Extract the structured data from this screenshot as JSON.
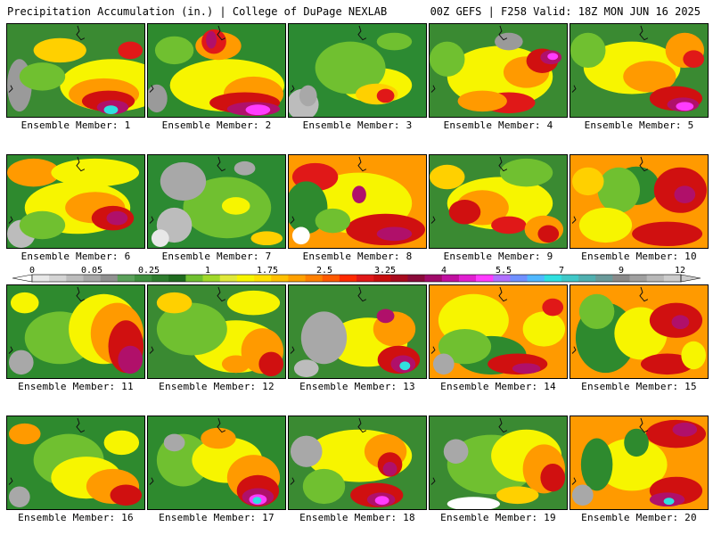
{
  "header": {
    "left": "Precipitation Accumulation (in.) | College of DuPage NEXLAB",
    "right": "00Z GEFS | F258 Valid: 18Z MON JUN 16 2025"
  },
  "panels": [
    {
      "label": "Ensemble Member: 1",
      "base": "#3a8a32",
      "blobs": [
        [
          "#f7f500",
          120,
          70,
          60,
          30
        ],
        [
          "#ff9a00",
          110,
          80,
          40,
          18
        ],
        [
          "#d01010",
          115,
          88,
          30,
          12
        ],
        [
          "#b0106a",
          120,
          95,
          18,
          8
        ],
        [
          "#30e0e0",
          118,
          98,
          8,
          5
        ],
        [
          "#9a9a9a",
          14,
          70,
          14,
          30
        ],
        [
          "#ffd000",
          60,
          30,
          30,
          14
        ],
        [
          "#e01818",
          140,
          30,
          14,
          10
        ],
        [
          "#70c030",
          40,
          60,
          26,
          16
        ]
      ]
    },
    {
      "label": "Ensemble Member: 2",
      "base": "#2e8a2e",
      "blobs": [
        [
          "#f7f500",
          90,
          70,
          65,
          30
        ],
        [
          "#ff9a00",
          80,
          25,
          26,
          16
        ],
        [
          "#e01818",
          75,
          20,
          14,
          14
        ],
        [
          "#b0106a",
          72,
          18,
          6,
          10
        ],
        [
          "#ff9a00",
          120,
          80,
          34,
          20
        ],
        [
          "#d01010",
          110,
          90,
          40,
          12
        ],
        [
          "#b0106a",
          120,
          97,
          30,
          8
        ],
        [
          "#ff3cff",
          125,
          98,
          14,
          6
        ],
        [
          "#9a9a9a",
          10,
          85,
          12,
          16
        ],
        [
          "#70c030",
          30,
          30,
          22,
          16
        ]
      ]
    },
    {
      "label": "Ensemble Member: 3",
      "base": "#2c8a32",
      "blobs": [
        [
          "#f7f500",
          100,
          70,
          40,
          20
        ],
        [
          "#70c030",
          70,
          50,
          40,
          30
        ],
        [
          "#ffd000",
          100,
          80,
          24,
          12
        ],
        [
          "#bcbcbc",
          16,
          92,
          18,
          18
        ],
        [
          "#a8a8a8",
          22,
          82,
          10,
          12
        ],
        [
          "#e01818",
          110,
          82,
          10,
          8
        ],
        [
          "#70c030",
          120,
          20,
          20,
          10
        ]
      ]
    },
    {
      "label": "Ensemble Member: 4",
      "base": "#3a8a32",
      "blobs": [
        [
          "#f7f500",
          80,
          60,
          60,
          35
        ],
        [
          "#ff9a00",
          110,
          55,
          26,
          18
        ],
        [
          "#d01010",
          128,
          42,
          18,
          14
        ],
        [
          "#b0106a",
          138,
          38,
          12,
          8
        ],
        [
          "#ff3cff",
          140,
          37,
          6,
          4
        ],
        [
          "#e01818",
          90,
          90,
          30,
          12
        ],
        [
          "#ff9a00",
          60,
          88,
          28,
          12
        ],
        [
          "#9a9a9a",
          90,
          20,
          16,
          10
        ],
        [
          "#70c030",
          20,
          40,
          20,
          20
        ]
      ]
    },
    {
      "label": "Ensemble Member: 5",
      "base": "#3a8a32",
      "blobs": [
        [
          "#f7f500",
          70,
          50,
          55,
          30
        ],
        [
          "#ff9a00",
          90,
          60,
          30,
          18
        ],
        [
          "#d01010",
          120,
          85,
          30,
          14
        ],
        [
          "#b0106a",
          128,
          92,
          18,
          8
        ],
        [
          "#ff3cff",
          130,
          94,
          10,
          5
        ],
        [
          "#ff9a00",
          130,
          30,
          22,
          20
        ],
        [
          "#e01818",
          140,
          40,
          12,
          10
        ],
        [
          "#70c030",
          20,
          30,
          20,
          20
        ]
      ]
    },
    {
      "label": "Ensemble Member: 6",
      "base": "#2e8a2e",
      "blobs": [
        [
          "#f7f500",
          80,
          60,
          60,
          30
        ],
        [
          "#ff9a00",
          100,
          60,
          34,
          18
        ],
        [
          "#d01010",
          120,
          72,
          24,
          14
        ],
        [
          "#b0106a",
          125,
          72,
          12,
          8
        ],
        [
          "#ff9a00",
          30,
          20,
          30,
          16
        ],
        [
          "#f7f500",
          100,
          20,
          50,
          16
        ],
        [
          "#bcbcbc",
          16,
          90,
          16,
          16
        ],
        [
          "#70c030",
          40,
          80,
          26,
          16
        ]
      ]
    },
    {
      "label": "Ensemble Member: 7",
      "base": "#2c8a32",
      "blobs": [
        [
          "#70c030",
          90,
          60,
          50,
          35
        ],
        [
          "#f7f500",
          100,
          58,
          16,
          10
        ],
        [
          "#a8a8a8",
          40,
          30,
          26,
          22
        ],
        [
          "#bcbcbc",
          30,
          80,
          20,
          20
        ],
        [
          "#e8e8e8",
          14,
          95,
          10,
          10
        ],
        [
          "#ffd000",
          135,
          95,
          18,
          8
        ],
        [
          "#a8a8a8",
          110,
          15,
          12,
          8
        ]
      ]
    },
    {
      "label": "Ensemble Member: 8",
      "base": "#ff9a00",
      "blobs": [
        [
          "#f7f500",
          80,
          55,
          60,
          35
        ],
        [
          "#d01010",
          110,
          85,
          45,
          18
        ],
        [
          "#b0106a",
          120,
          90,
          20,
          8
        ],
        [
          "#e01818",
          30,
          25,
          26,
          16
        ],
        [
          "#2e8a2e",
          20,
          60,
          24,
          30
        ],
        [
          "#ffffff",
          14,
          92,
          10,
          10
        ],
        [
          "#b0106a",
          80,
          45,
          8,
          10
        ],
        [
          "#70c030",
          50,
          75,
          20,
          14
        ]
      ]
    },
    {
      "label": "Ensemble Member: 9",
      "base": "#3a8a32",
      "blobs": [
        [
          "#f7f500",
          80,
          55,
          60,
          30
        ],
        [
          "#ff9a00",
          60,
          60,
          30,
          20
        ],
        [
          "#d01010",
          40,
          65,
          18,
          14
        ],
        [
          "#e01818",
          90,
          80,
          20,
          10
        ],
        [
          "#ff9a00",
          130,
          85,
          22,
          16
        ],
        [
          "#d01010",
          135,
          90,
          12,
          10
        ],
        [
          "#70c030",
          110,
          20,
          30,
          16
        ],
        [
          "#ffd000",
          20,
          25,
          20,
          14
        ]
      ]
    },
    {
      "label": "Ensemble Member: 10",
      "base": "#ff9a00",
      "blobs": [
        [
          "#2e8a2e",
          75,
          35,
          26,
          22
        ],
        [
          "#70c030",
          55,
          40,
          24,
          26
        ],
        [
          "#d01010",
          125,
          40,
          30,
          26
        ],
        [
          "#b0106a",
          130,
          45,
          12,
          10
        ],
        [
          "#d01010",
          110,
          90,
          40,
          14
        ],
        [
          "#f7f500",
          40,
          80,
          30,
          20
        ],
        [
          "#ffd000",
          20,
          30,
          18,
          16
        ]
      ]
    },
    {
      "label": "Ensemble Member: 11",
      "base": "#2e8a2e",
      "blobs": [
        [
          "#70c030",
          60,
          60,
          40,
          30
        ],
        [
          "#f7f500",
          110,
          50,
          40,
          40
        ],
        [
          "#ff9a00",
          125,
          55,
          30,
          35
        ],
        [
          "#d01010",
          135,
          70,
          20,
          30
        ],
        [
          "#b0106a",
          140,
          85,
          14,
          16
        ],
        [
          "#a8a8a8",
          16,
          88,
          14,
          14
        ],
        [
          "#f7f500",
          20,
          20,
          16,
          12
        ]
      ]
    },
    {
      "label": "Ensemble Member: 12",
      "base": "#3a8a32",
      "blobs": [
        [
          "#f7f500",
          100,
          70,
          50,
          30
        ],
        [
          "#ff9a00",
          130,
          75,
          24,
          26
        ],
        [
          "#d01010",
          140,
          90,
          14,
          14
        ],
        [
          "#70c030",
          50,
          50,
          40,
          30
        ],
        [
          "#ffd000",
          30,
          20,
          20,
          12
        ],
        [
          "#f7f500",
          120,
          20,
          30,
          14
        ],
        [
          "#ff9a00",
          100,
          90,
          16,
          10
        ]
      ]
    },
    {
      "label": "Ensemble Member: 13",
      "base": "#3a8a32",
      "blobs": [
        [
          "#f7f500",
          90,
          65,
          45,
          28
        ],
        [
          "#ff9a00",
          120,
          50,
          24,
          20
        ],
        [
          "#d01010",
          125,
          85,
          24,
          16
        ],
        [
          "#b0106a",
          130,
          90,
          14,
          10
        ],
        [
          "#30e0e0",
          132,
          92,
          6,
          5
        ],
        [
          "#a8a8a8",
          40,
          60,
          26,
          30
        ],
        [
          "#bcbcbc",
          20,
          95,
          14,
          10
        ],
        [
          "#b0106a",
          110,
          35,
          10,
          8
        ]
      ]
    },
    {
      "label": "Ensemble Member: 14",
      "base": "#ff9a00",
      "blobs": [
        [
          "#f7f500",
          50,
          40,
          40,
          30
        ],
        [
          "#2e8a2e",
          70,
          80,
          40,
          22
        ],
        [
          "#70c030",
          40,
          70,
          30,
          20
        ],
        [
          "#d01010",
          100,
          90,
          34,
          12
        ],
        [
          "#b0106a",
          110,
          95,
          16,
          6
        ],
        [
          "#f7f500",
          130,
          50,
          24,
          20
        ],
        [
          "#a8a8a8",
          16,
          90,
          12,
          12
        ],
        [
          "#e01818",
          140,
          25,
          12,
          10
        ]
      ]
    },
    {
      "label": "Ensemble Member: 15",
      "base": "#ff9a00",
      "blobs": [
        [
          "#2e8a2e",
          40,
          60,
          34,
          40
        ],
        [
          "#70c030",
          30,
          30,
          20,
          20
        ],
        [
          "#f7f500",
          80,
          55,
          30,
          30
        ],
        [
          "#d01010",
          120,
          40,
          30,
          20
        ],
        [
          "#b0106a",
          125,
          42,
          10,
          8
        ],
        [
          "#d01010",
          110,
          90,
          30,
          12
        ],
        [
          "#f7f500",
          140,
          80,
          14,
          16
        ]
      ]
    },
    {
      "label": "Ensemble Member: 16",
      "base": "#2e8a2e",
      "blobs": [
        [
          "#70c030",
          70,
          50,
          40,
          30
        ],
        [
          "#f7f500",
          90,
          70,
          40,
          24
        ],
        [
          "#ff9a00",
          120,
          80,
          30,
          20
        ],
        [
          "#d01010",
          135,
          90,
          18,
          12
        ],
        [
          "#ff9a00",
          20,
          20,
          18,
          12
        ],
        [
          "#a8a8a8",
          14,
          92,
          12,
          12
        ],
        [
          "#f7f500",
          130,
          30,
          20,
          14
        ]
      ]
    },
    {
      "label": "Ensemble Member: 17",
      "base": "#2e8a2e",
      "blobs": [
        [
          "#70c030",
          40,
          50,
          30,
          30
        ],
        [
          "#f7f500",
          90,
          50,
          40,
          26
        ],
        [
          "#ff9a00",
          120,
          70,
          30,
          26
        ],
        [
          "#d01010",
          125,
          85,
          24,
          18
        ],
        [
          "#b0106a",
          125,
          92,
          18,
          10
        ],
        [
          "#ff3cff",
          125,
          95,
          10,
          6
        ],
        [
          "#30e0e0",
          124,
          96,
          5,
          4
        ],
        [
          "#ff9a00",
          80,
          25,
          20,
          12
        ],
        [
          "#a8a8a8",
          30,
          30,
          12,
          10
        ]
      ]
    },
    {
      "label": "Ensemble Member: 18",
      "base": "#3a8a32",
      "blobs": [
        [
          "#f7f500",
          80,
          45,
          60,
          30
        ],
        [
          "#ff9a00",
          110,
          40,
          24,
          20
        ],
        [
          "#d01010",
          115,
          55,
          14,
          14
        ],
        [
          "#b0106a",
          115,
          60,
          8,
          8
        ],
        [
          "#d01010",
          100,
          90,
          30,
          14
        ],
        [
          "#b0106a",
          105,
          95,
          16,
          8
        ],
        [
          "#ff3cff",
          106,
          96,
          8,
          5
        ],
        [
          "#a8a8a8",
          20,
          40,
          18,
          18
        ],
        [
          "#70c030",
          40,
          80,
          24,
          20
        ]
      ]
    },
    {
      "label": "Ensemble Member: 19",
      "base": "#3a8a32",
      "blobs": [
        [
          "#70c030",
          70,
          55,
          50,
          34
        ],
        [
          "#f7f500",
          110,
          45,
          40,
          30
        ],
        [
          "#ff9a00",
          130,
          60,
          24,
          28
        ],
        [
          "#d01010",
          140,
          70,
          14,
          16
        ],
        [
          "#a8a8a8",
          30,
          40,
          14,
          14
        ],
        [
          "#ffffff",
          50,
          100,
          30,
          8
        ],
        [
          "#ffd000",
          100,
          90,
          24,
          10
        ]
      ]
    },
    {
      "label": "Ensemble Member: 20",
      "base": "#ff9a00",
      "blobs": [
        [
          "#d01010",
          120,
          20,
          34,
          16
        ],
        [
          "#b0106a",
          130,
          15,
          14,
          8
        ],
        [
          "#f7f500",
          70,
          55,
          40,
          30
        ],
        [
          "#2e8a2e",
          75,
          30,
          14,
          16
        ],
        [
          "#2e8a2e",
          30,
          55,
          18,
          30
        ],
        [
          "#d01010",
          120,
          85,
          30,
          16
        ],
        [
          "#b0106a",
          110,
          95,
          20,
          8
        ],
        [
          "#30e0e0",
          112,
          97,
          6,
          4
        ],
        [
          "#a8a8a8",
          14,
          90,
          12,
          12
        ]
      ]
    }
  ],
  "colorbar": {
    "labels": [
      "0",
      "0.05",
      "0.25",
      "1",
      "1.75",
      "2.5",
      "3.25",
      "4",
      "5.5",
      "7",
      "9",
      "12"
    ],
    "colors": [
      "#e8e8e8",
      "#d4d4d4",
      "#bcbcbc",
      "#a8a8a8",
      "#909090",
      "#5aa05a",
      "#3f8f3f",
      "#2e7d2e",
      "#1f6b1f",
      "#70c030",
      "#a0d82a",
      "#dfe83a",
      "#f7f500",
      "#ffe000",
      "#ffc000",
      "#ffa000",
      "#ff8000",
      "#ff5a00",
      "#ff2a00",
      "#e01818",
      "#c80e0e",
      "#a80a1e",
      "#8a0a3a",
      "#a00a6a",
      "#c010a0",
      "#e020d0",
      "#ff3cff",
      "#b070ff",
      "#7090ff",
      "#50b8ff",
      "#30e0e0",
      "#40c8c8",
      "#50b0b0",
      "#6a9a9a",
      "#8a8a8a",
      "#a0a0a0",
      "#b8b8b8",
      "#cccccc"
    ]
  }
}
